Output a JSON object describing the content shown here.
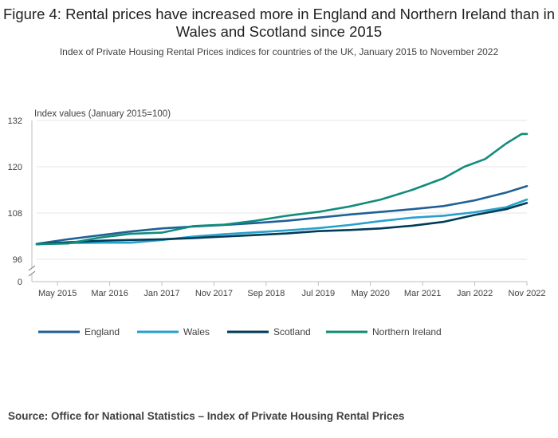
{
  "title": "Figure 4: Rental prices have increased more in England and Northern Ireland than in Wales and Scotland since 2015",
  "subtitle": "Index of Private Housing Rental Prices indices for countries of the UK, January 2015 to November 2022",
  "source": "Source: Office for National Statistics – Index of Private Housing Rental Prices",
  "chart_data": {
    "type": "line",
    "ylabel": "Index values (January 2015=100)",
    "xlabel": "",
    "ylim": [
      96,
      132
    ],
    "y_axis_break": true,
    "y_ticks": [
      "0",
      "96",
      "108",
      "120",
      "132"
    ],
    "x_ticks": [
      "May 2015",
      "Mar 2016",
      "Jan 2017",
      "Nov 2017",
      "Sep 2018",
      "Jul 2019",
      "May 2020",
      "Mar 2021",
      "Jan 2022",
      "Nov 2022"
    ],
    "x_tick_months": [
      4,
      14,
      24,
      34,
      44,
      54,
      64,
      74,
      84,
      94
    ],
    "x_range_months": [
      0,
      94
    ],
    "grid": true,
    "legend_position": "bottom",
    "series": [
      {
        "name": "England",
        "color": "#206095",
        "points": [
          [
            0,
            100.0
          ],
          [
            6,
            101.2
          ],
          [
            12,
            102.2
          ],
          [
            18,
            103.2
          ],
          [
            24,
            104.0
          ],
          [
            30,
            104.5
          ],
          [
            36,
            104.9
          ],
          [
            42,
            105.4
          ],
          [
            48,
            106.0
          ],
          [
            54,
            106.8
          ],
          [
            60,
            107.6
          ],
          [
            66,
            108.3
          ],
          [
            72,
            109.0
          ],
          [
            78,
            109.8
          ],
          [
            84,
            111.3
          ],
          [
            90,
            113.3
          ],
          [
            94,
            115.0
          ]
        ]
      },
      {
        "name": "Wales",
        "color": "#27A0CC",
        "points": [
          [
            0,
            99.9
          ],
          [
            6,
            100.2
          ],
          [
            12,
            100.3
          ],
          [
            18,
            100.3
          ],
          [
            24,
            101.0
          ],
          [
            30,
            101.9
          ],
          [
            36,
            102.5
          ],
          [
            42,
            103.0
          ],
          [
            48,
            103.5
          ],
          [
            54,
            104.1
          ],
          [
            60,
            104.9
          ],
          [
            66,
            105.9
          ],
          [
            72,
            106.8
          ],
          [
            78,
            107.3
          ],
          [
            84,
            108.2
          ],
          [
            90,
            109.5
          ],
          [
            94,
            111.5
          ]
        ]
      },
      {
        "name": "Scotland",
        "color": "#003C57",
        "points": [
          [
            0,
            99.9
          ],
          [
            6,
            100.4
          ],
          [
            12,
            100.8
          ],
          [
            18,
            101.0
          ],
          [
            24,
            101.2
          ],
          [
            30,
            101.5
          ],
          [
            36,
            101.9
          ],
          [
            42,
            102.3
          ],
          [
            48,
            102.7
          ],
          [
            54,
            103.3
          ],
          [
            60,
            103.6
          ],
          [
            66,
            104.0
          ],
          [
            72,
            104.7
          ],
          [
            78,
            105.7
          ],
          [
            84,
            107.5
          ],
          [
            90,
            109.0
          ],
          [
            94,
            110.6
          ]
        ]
      },
      {
        "name": "Northern Ireland",
        "color": "#118C7B",
        "points": [
          [
            0,
            99.9
          ],
          [
            6,
            100.1
          ],
          [
            12,
            101.6
          ],
          [
            18,
            102.6
          ],
          [
            24,
            102.9
          ],
          [
            30,
            104.6
          ],
          [
            36,
            105.0
          ],
          [
            42,
            106.0
          ],
          [
            48,
            107.3
          ],
          [
            54,
            108.3
          ],
          [
            60,
            109.7
          ],
          [
            66,
            111.5
          ],
          [
            72,
            114.0
          ],
          [
            78,
            117.0
          ],
          [
            82,
            120.0
          ],
          [
            86,
            122.0
          ],
          [
            90,
            126.0
          ],
          [
            93,
            128.5
          ],
          [
            94,
            128.5
          ]
        ]
      }
    ]
  }
}
